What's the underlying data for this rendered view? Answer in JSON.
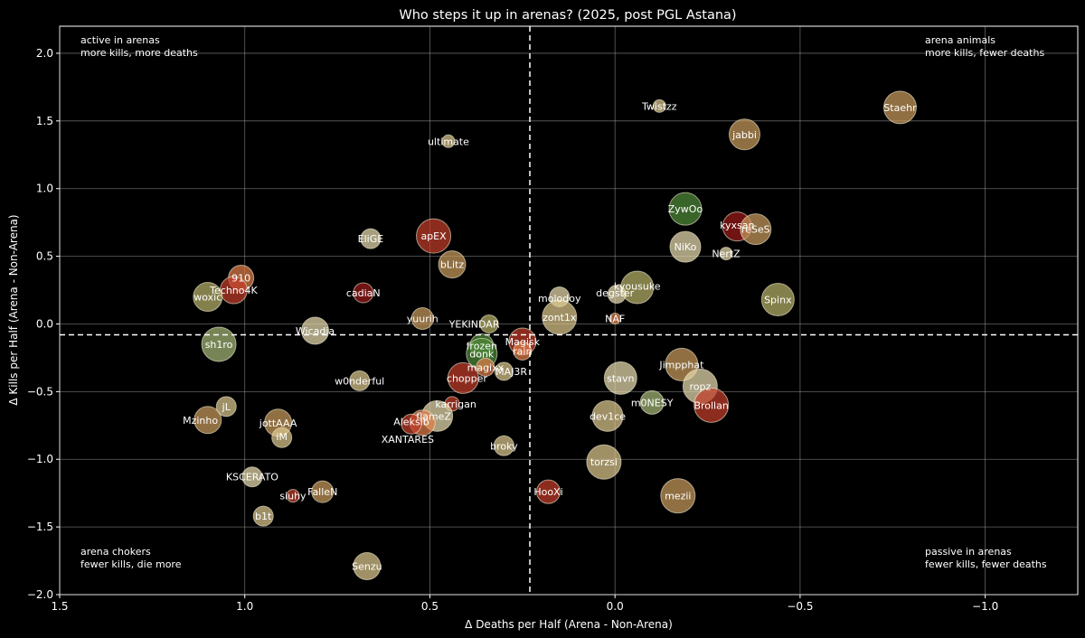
{
  "chart_data": {
    "type": "scatter",
    "title": "Who steps it up in arenas? (2025, post PGL Astana)",
    "xlabel": "Δ Deaths per Half (Arena - Non-Arena)",
    "ylabel": "Δ Kills per Half (Arena - Non-Arena)",
    "xlim": [
      1.5,
      -1.25
    ],
    "ylim": [
      -2.0,
      2.2
    ],
    "x_inverted": true,
    "grid": true,
    "xticks": [
      1.5,
      1.0,
      0.5,
      0.0,
      -0.5,
      -1.0
    ],
    "xtick_labels": [
      "1.5",
      "1.0",
      "0.5",
      "0.0",
      "−0.5",
      "−1.0"
    ],
    "yticks": [
      -2.0,
      -1.5,
      -1.0,
      -0.5,
      0.0,
      0.5,
      1.0,
      1.5,
      2.0
    ],
    "ytick_labels": [
      "−2.0",
      "−1.5",
      "−1.0",
      "−0.5",
      "0.0",
      "0.5",
      "1.0",
      "1.5",
      "2.0"
    ],
    "reference_lines": {
      "x": 0.23,
      "y": -0.08,
      "style": "dashed",
      "color": "#ffffff"
    },
    "quadrant_labels": [
      {
        "position": "top-left",
        "lines": [
          "active in arenas",
          "more kills, more deaths"
        ]
      },
      {
        "position": "top-right",
        "lines": [
          "arena animals",
          "more kills, fewer deaths"
        ]
      },
      {
        "position": "bottom-left",
        "lines": [
          "arena chokers",
          "fewer kills, die more"
        ]
      },
      {
        "position": "bottom-right",
        "lines": [
          "passive in arenas",
          "fewer kills, fewer deaths"
        ]
      }
    ],
    "colors": {
      "background": "#000000",
      "grid": "#b4b4b4",
      "text": "#ffffff",
      "cream": "#e7dcae",
      "sand": "#dcc78e",
      "tan": "#c79a5c",
      "olive": "#b7b168",
      "sage": "#a5b877",
      "orange": "#e07e4a",
      "red": "#c23d2a",
      "darkred": "#9a1a1a",
      "green": "#4f8a3a"
    },
    "points": [
      {
        "name": "Staehr",
        "x": -0.77,
        "y": 1.6,
        "size": 18,
        "color": "tan"
      },
      {
        "name": "jabbi",
        "x": -0.35,
        "y": 1.4,
        "size": 17,
        "color": "tan"
      },
      {
        "name": "Twistzz",
        "x": -0.12,
        "y": 1.61,
        "size": 7,
        "color": "sand"
      },
      {
        "name": "ultimate",
        "x": 0.45,
        "y": 1.35,
        "size": 7,
        "color": "sand"
      },
      {
        "name": "ZywOo",
        "x": -0.19,
        "y": 0.85,
        "size": 18,
        "color": "green"
      },
      {
        "name": "kyxsan",
        "x": -0.33,
        "y": 0.72,
        "size": 16,
        "color": "darkred"
      },
      {
        "name": "reSeS",
        "x": -0.38,
        "y": 0.7,
        "size": 17,
        "color": "tan"
      },
      {
        "name": "NiKo",
        "x": -0.19,
        "y": 0.57,
        "size": 17,
        "color": "cream"
      },
      {
        "name": "NertZ",
        "x": -0.3,
        "y": 0.52,
        "size": 7,
        "color": "cream"
      },
      {
        "name": "apEX",
        "x": 0.49,
        "y": 0.65,
        "size": 19,
        "color": "red"
      },
      {
        "name": "EliGE",
        "x": 0.66,
        "y": 0.63,
        "size": 11,
        "color": "cream"
      },
      {
        "name": "bLitz",
        "x": 0.44,
        "y": 0.44,
        "size": 15,
        "color": "tan"
      },
      {
        "name": "910",
        "x": 1.01,
        "y": 0.34,
        "size": 14,
        "color": "orange"
      },
      {
        "name": "Techno4K",
        "x": 1.03,
        "y": 0.25,
        "size": 15,
        "color": "red"
      },
      {
        "name": "woxic",
        "x": 1.1,
        "y": 0.2,
        "size": 16,
        "color": "olive"
      },
      {
        "name": "cadiaN",
        "x": 0.68,
        "y": 0.23,
        "size": 11,
        "color": "darkred"
      },
      {
        "name": "kyousuke",
        "x": -0.06,
        "y": 0.27,
        "size": 18,
        "color": "olive"
      },
      {
        "name": "kyousuke2",
        "x": -0.005,
        "y": 0.22,
        "size": 10,
        "color": "cream"
      },
      {
        "name": "molodoy",
        "x": 0.15,
        "y": 0.2,
        "size": 11,
        "color": "cream"
      },
      {
        "name": "Spinx",
        "x": -0.44,
        "y": 0.18,
        "size": 18,
        "color": "olive"
      },
      {
        "name": "zont1x",
        "x": 0.15,
        "y": 0.05,
        "size": 19,
        "color": "sand"
      },
      {
        "name": "NAF",
        "x": 0.0,
        "y": 0.04,
        "size": 6,
        "color": "orange"
      },
      {
        "name": "yuurih",
        "x": 0.52,
        "y": 0.04,
        "size": 12,
        "color": "tan"
      },
      {
        "name": "YEKINDAR",
        "x": 0.34,
        "y": 0.0,
        "size": 10,
        "color": "olive"
      },
      {
        "name": "Wicadia",
        "x": 0.81,
        "y": -0.05,
        "size": 15,
        "color": "cream"
      },
      {
        "name": "sh1ro",
        "x": 1.07,
        "y": -0.15,
        "size": 19,
        "color": "sage"
      },
      {
        "name": "frozen",
        "x": 0.36,
        "y": -0.16,
        "size": 13,
        "color": "green"
      },
      {
        "name": "Magisk",
        "x": 0.25,
        "y": -0.13,
        "size": 15,
        "color": "red"
      },
      {
        "name": "rain",
        "x": 0.25,
        "y": -0.2,
        "size": 10,
        "color": "orange"
      },
      {
        "name": "donk",
        "x": 0.36,
        "y": -0.22,
        "size": 17,
        "color": "green"
      },
      {
        "name": "magixx",
        "x": 0.35,
        "y": -0.32,
        "size": 10,
        "color": "orange"
      },
      {
        "name": "MAJ3R",
        "x": 0.3,
        "y": -0.35,
        "size": 10,
        "color": "sand"
      },
      {
        "name": "chopper",
        "x": 0.41,
        "y": -0.4,
        "size": 17,
        "color": "red"
      },
      {
        "name": "w0nderful",
        "x": 0.69,
        "y": -0.42,
        "size": 11,
        "color": "sand"
      },
      {
        "name": "Jimpphat",
        "x": -0.18,
        "y": -0.3,
        "size": 18,
        "color": "tan"
      },
      {
        "name": "stavn",
        "x": -0.015,
        "y": -0.4,
        "size": 18,
        "color": "cream"
      },
      {
        "name": "ropz",
        "x": -0.23,
        "y": -0.46,
        "size": 19,
        "color": "cream"
      },
      {
        "name": "Brollan",
        "x": -0.26,
        "y": -0.6,
        "size": 19,
        "color": "red"
      },
      {
        "name": "m0NESY",
        "x": -0.1,
        "y": -0.58,
        "size": 13,
        "color": "sage"
      },
      {
        "name": "karrigan",
        "x": 0.44,
        "y": -0.59,
        "size": 8,
        "color": "red"
      },
      {
        "name": "jL",
        "x": 1.05,
        "y": -0.61,
        "size": 11,
        "color": "sand"
      },
      {
        "name": "Mzinho",
        "x": 1.1,
        "y": -0.71,
        "size": 15,
        "color": "tan"
      },
      {
        "name": "flameZ",
        "x": 0.48,
        "y": -0.68,
        "size": 17,
        "color": "cream"
      },
      {
        "name": "Aleksib",
        "x": 0.52,
        "y": -0.73,
        "size": 14,
        "color": "orange"
      },
      {
        "name": "Aleksib2",
        "x": 0.55,
        "y": -0.74,
        "size": 11,
        "color": "red"
      },
      {
        "name": "dev1ce",
        "x": 0.02,
        "y": -0.68,
        "size": 17,
        "color": "sand"
      },
      {
        "name": "jottAAA",
        "x": 0.91,
        "y": -0.73,
        "size": 15,
        "color": "tan"
      },
      {
        "name": "iM",
        "x": 0.9,
        "y": -0.84,
        "size": 11,
        "color": "sand"
      },
      {
        "name": "broky",
        "x": 0.3,
        "y": -0.9,
        "size": 11,
        "color": "sand"
      },
      {
        "name": "torzsi",
        "x": 0.03,
        "y": -1.02,
        "size": 19,
        "color": "sand"
      },
      {
        "name": "KSCERATO",
        "x": 0.98,
        "y": -1.13,
        "size": 11,
        "color": "cream"
      },
      {
        "name": "siuhy",
        "x": 0.87,
        "y": -1.27,
        "size": 7,
        "color": "red"
      },
      {
        "name": "FalleN",
        "x": 0.79,
        "y": -1.24,
        "size": 12,
        "color": "tan"
      },
      {
        "name": "HooXi",
        "x": 0.18,
        "y": -1.24,
        "size": 13,
        "color": "red"
      },
      {
        "name": "mezii",
        "x": -0.17,
        "y": -1.27,
        "size": 19,
        "color": "tan"
      },
      {
        "name": "b1t",
        "x": 0.95,
        "y": -1.42,
        "size": 11,
        "color": "sand"
      },
      {
        "name": "Senzu",
        "x": 0.67,
        "y": -1.79,
        "size": 15,
        "color": "sand"
      }
    ],
    "point_labels": [
      {
        "text": "Staehr",
        "x": -0.77,
        "y": 1.6
      },
      {
        "text": "jabbi",
        "x": -0.35,
        "y": 1.4
      },
      {
        "text": "Twistzz",
        "x": -0.12,
        "y": 1.61
      },
      {
        "text": "ultimate",
        "x": 0.45,
        "y": 1.35
      },
      {
        "text": "ZywOo",
        "x": -0.19,
        "y": 0.85
      },
      {
        "text": "kyxsan",
        "x": -0.33,
        "y": 0.73
      },
      {
        "text": "reSeS",
        "x": -0.38,
        "y": 0.7
      },
      {
        "text": "NiKo",
        "x": -0.19,
        "y": 0.57
      },
      {
        "text": "NertZ",
        "x": -0.3,
        "y": 0.52
      },
      {
        "text": "apEX",
        "x": 0.49,
        "y": 0.65
      },
      {
        "text": "EliGE",
        "x": 0.66,
        "y": 0.63
      },
      {
        "text": "bLitz",
        "x": 0.44,
        "y": 0.44
      },
      {
        "text": "910",
        "x": 1.01,
        "y": 0.34
      },
      {
        "text": "Techno4K",
        "x": 1.03,
        "y": 0.25
      },
      {
        "text": "woxic",
        "x": 1.1,
        "y": 0.2
      },
      {
        "text": "cadiaN",
        "x": 0.68,
        "y": 0.23
      },
      {
        "text": "kyousuke",
        "x": -0.06,
        "y": 0.28
      },
      {
        "text": "degster",
        "x": 0.0,
        "y": 0.23
      },
      {
        "text": "molodoy",
        "x": 0.15,
        "y": 0.19
      },
      {
        "text": "Spinx",
        "x": -0.44,
        "y": 0.18
      },
      {
        "text": "zont1x",
        "x": 0.15,
        "y": 0.05
      },
      {
        "text": "NAF",
        "x": 0.0,
        "y": 0.04
      },
      {
        "text": "yuurih",
        "x": 0.52,
        "y": 0.04
      },
      {
        "text": "YEKINDAR",
        "x": 0.38,
        "y": 0.0
      },
      {
        "text": "Wicadia",
        "x": 0.81,
        "y": -0.05
      },
      {
        "text": "sh1ro",
        "x": 1.07,
        "y": -0.15
      },
      {
        "text": "frozen",
        "x": 0.36,
        "y": -0.16
      },
      {
        "text": "Magisk",
        "x": 0.25,
        "y": -0.13
      },
      {
        "text": "rain",
        "x": 0.25,
        "y": -0.2
      },
      {
        "text": "donk",
        "x": 0.36,
        "y": -0.22
      },
      {
        "text": "magixx",
        "x": 0.35,
        "y": -0.32
      },
      {
        "text": "MAJ3R",
        "x": 0.28,
        "y": -0.35
      },
      {
        "text": "chopper",
        "x": 0.4,
        "y": -0.4
      },
      {
        "text": "w0nderful",
        "x": 0.69,
        "y": -0.42
      },
      {
        "text": "Jimpphat",
        "x": -0.18,
        "y": -0.3
      },
      {
        "text": "stavn",
        "x": -0.015,
        "y": -0.4
      },
      {
        "text": "ropz",
        "x": -0.23,
        "y": -0.46
      },
      {
        "text": "Brollan",
        "x": -0.26,
        "y": -0.6
      },
      {
        "text": "m0NESY",
        "x": -0.1,
        "y": -0.58
      },
      {
        "text": "karrigan",
        "x": 0.43,
        "y": -0.59
      },
      {
        "text": "jL",
        "x": 1.05,
        "y": -0.61
      },
      {
        "text": "Mzinho",
        "x": 1.12,
        "y": -0.71
      },
      {
        "text": "flameZ",
        "x": 0.49,
        "y": -0.68
      },
      {
        "text": "Aleksib",
        "x": 0.55,
        "y": -0.72
      },
      {
        "text": "dev1ce",
        "x": 0.02,
        "y": -0.68
      },
      {
        "text": "jottAAA",
        "x": 0.91,
        "y": -0.73
      },
      {
        "text": "iM",
        "x": 0.9,
        "y": -0.83
      },
      {
        "text": "XANTARES",
        "x": 0.56,
        "y": -0.85
      },
      {
        "text": "broky",
        "x": 0.3,
        "y": -0.9
      },
      {
        "text": "torzsi",
        "x": 0.03,
        "y": -1.02
      },
      {
        "text": "KSCERATO",
        "x": 0.98,
        "y": -1.13
      },
      {
        "text": "siuhy",
        "x": 0.87,
        "y": -1.27
      },
      {
        "text": "FalleN",
        "x": 0.79,
        "y": -1.24
      },
      {
        "text": "HooXi",
        "x": 0.18,
        "y": -1.24
      },
      {
        "text": "mezii",
        "x": -0.17,
        "y": -1.27
      },
      {
        "text": "b1t",
        "x": 0.95,
        "y": -1.42
      },
      {
        "text": "Senzu",
        "x": 0.67,
        "y": -1.79
      }
    ]
  }
}
